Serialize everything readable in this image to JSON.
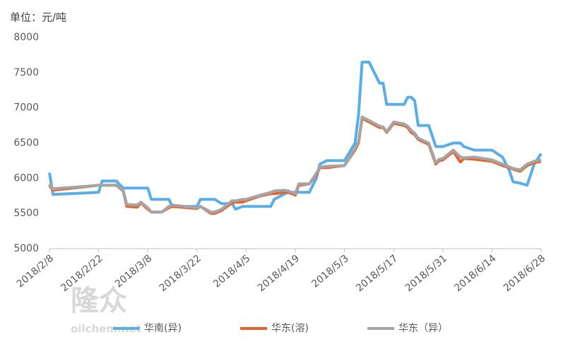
{
  "chart_data": {
    "type": "line",
    "unit_label": "单位：元/吨",
    "x": [
      "2018/2/8",
      "2018/2/9",
      "2018/2/22",
      "2018/2/23",
      "2018/2/27",
      "2018/3/1",
      "2018/3/2",
      "2018/3/5",
      "2018/3/6",
      "2018/3/8",
      "2018/3/9",
      "2018/3/12",
      "2018/3/14",
      "2018/3/15",
      "2018/3/22",
      "2018/3/23",
      "2018/3/26",
      "2018/3/27",
      "2018/3/29",
      "2018/3/30",
      "2018/4/1",
      "2018/4/2",
      "2018/4/4",
      "2018/4/5",
      "2018/4/9",
      "2018/4/12",
      "2018/4/13",
      "2018/4/16",
      "2018/4/17",
      "2018/4/19",
      "2018/4/20",
      "2018/4/23",
      "2018/4/25",
      "2018/4/26",
      "2018/4/28",
      "2018/5/3",
      "2018/5/6",
      "2018/5/7",
      "2018/5/8",
      "2018/5/10",
      "2018/5/13",
      "2018/5/14",
      "2018/5/15",
      "2018/5/17",
      "2018/5/20",
      "2018/5/21",
      "2018/5/22",
      "2018/5/23",
      "2018/5/24",
      "2018/5/27",
      "2018/5/29",
      "2018/5/30",
      "2018/5/31",
      "2018/6/3",
      "2018/6/5",
      "2018/6/6",
      "2018/6/9",
      "2018/6/14",
      "2018/6/17",
      "2018/6/19",
      "2018/6/20",
      "2018/6/22",
      "2018/6/24",
      "2018/6/26",
      "2018/6/28"
    ],
    "series": [
      {
        "name": "华南(异)",
        "color": "#5aaee8",
        "values": [
          6080,
          5770,
          5800,
          5960,
          5960,
          5860,
          5860,
          5860,
          5860,
          5860,
          5700,
          5700,
          5700,
          5600,
          5600,
          5700,
          5700,
          5700,
          5640,
          5640,
          5640,
          5560,
          5600,
          5600,
          5600,
          5600,
          5700,
          5780,
          5800,
          5800,
          5800,
          5800,
          6000,
          6200,
          6250,
          6250,
          6500,
          6900,
          7650,
          7650,
          7350,
          7350,
          7050,
          7050,
          7050,
          7150,
          7150,
          7100,
          6750,
          6750,
          6450,
          6450,
          6450,
          6500,
          6500,
          6450,
          6400,
          6400,
          6300,
          6100,
          5950,
          5930,
          5900,
          6200,
          6350
        ]
      },
      {
        "name": "华东(溶)",
        "color": "#e8622c",
        "values": [
          5900,
          5830,
          5900,
          5900,
          5900,
          5820,
          5600,
          5590,
          5650,
          5560,
          5520,
          5520,
          5580,
          5600,
          5570,
          5600,
          5500,
          5500,
          5540,
          5580,
          5650,
          5660,
          5660,
          5680,
          5750,
          5780,
          5780,
          5800,
          5800,
          5760,
          5900,
          5920,
          6050,
          6150,
          6150,
          6180,
          6400,
          6500,
          6850,
          6800,
          6720,
          6720,
          6650,
          6780,
          6750,
          6720,
          6650,
          6620,
          6550,
          6480,
          6200,
          6250,
          6260,
          6380,
          6230,
          6280,
          6270,
          6240,
          6180,
          6150,
          6130,
          6100,
          6180,
          6220,
          6240
        ]
      },
      {
        "name": "华东（异）",
        "color": "#a5a5a5",
        "values": [
          5920,
          5850,
          5900,
          5900,
          5900,
          5830,
          5630,
          5620,
          5660,
          5580,
          5520,
          5520,
          5600,
          5620,
          5580,
          5600,
          5520,
          5520,
          5560,
          5600,
          5680,
          5680,
          5700,
          5700,
          5760,
          5800,
          5820,
          5830,
          5820,
          5780,
          5920,
          5920,
          6070,
          6160,
          6170,
          6180,
          6420,
          6520,
          6870,
          6820,
          6740,
          6730,
          6660,
          6800,
          6770,
          6740,
          6680,
          6640,
          6570,
          6500,
          6220,
          6270,
          6280,
          6400,
          6300,
          6290,
          6300,
          6260,
          6200,
          6160,
          6140,
          6120,
          6200,
          6240,
          6260
        ]
      }
    ],
    "xlim": [
      "2018/2/8",
      "2018/6/28"
    ],
    "xticks": [
      "2018/2/8",
      "2018/2/22",
      "2018/3/8",
      "2018/3/22",
      "2018/4/5",
      "2018/4/19",
      "2018/5/3",
      "2018/5/17",
      "2018/5/31",
      "2018/6/14",
      "2018/6/28"
    ],
    "ylim": [
      5000,
      8000
    ],
    "yticks": [
      5000,
      5500,
      6000,
      6500,
      7000,
      7500,
      8000
    ],
    "grid": false,
    "legend": "bottom",
    "watermark": {
      "brand": "隆众",
      "site": "oilchem.net"
    }
  }
}
